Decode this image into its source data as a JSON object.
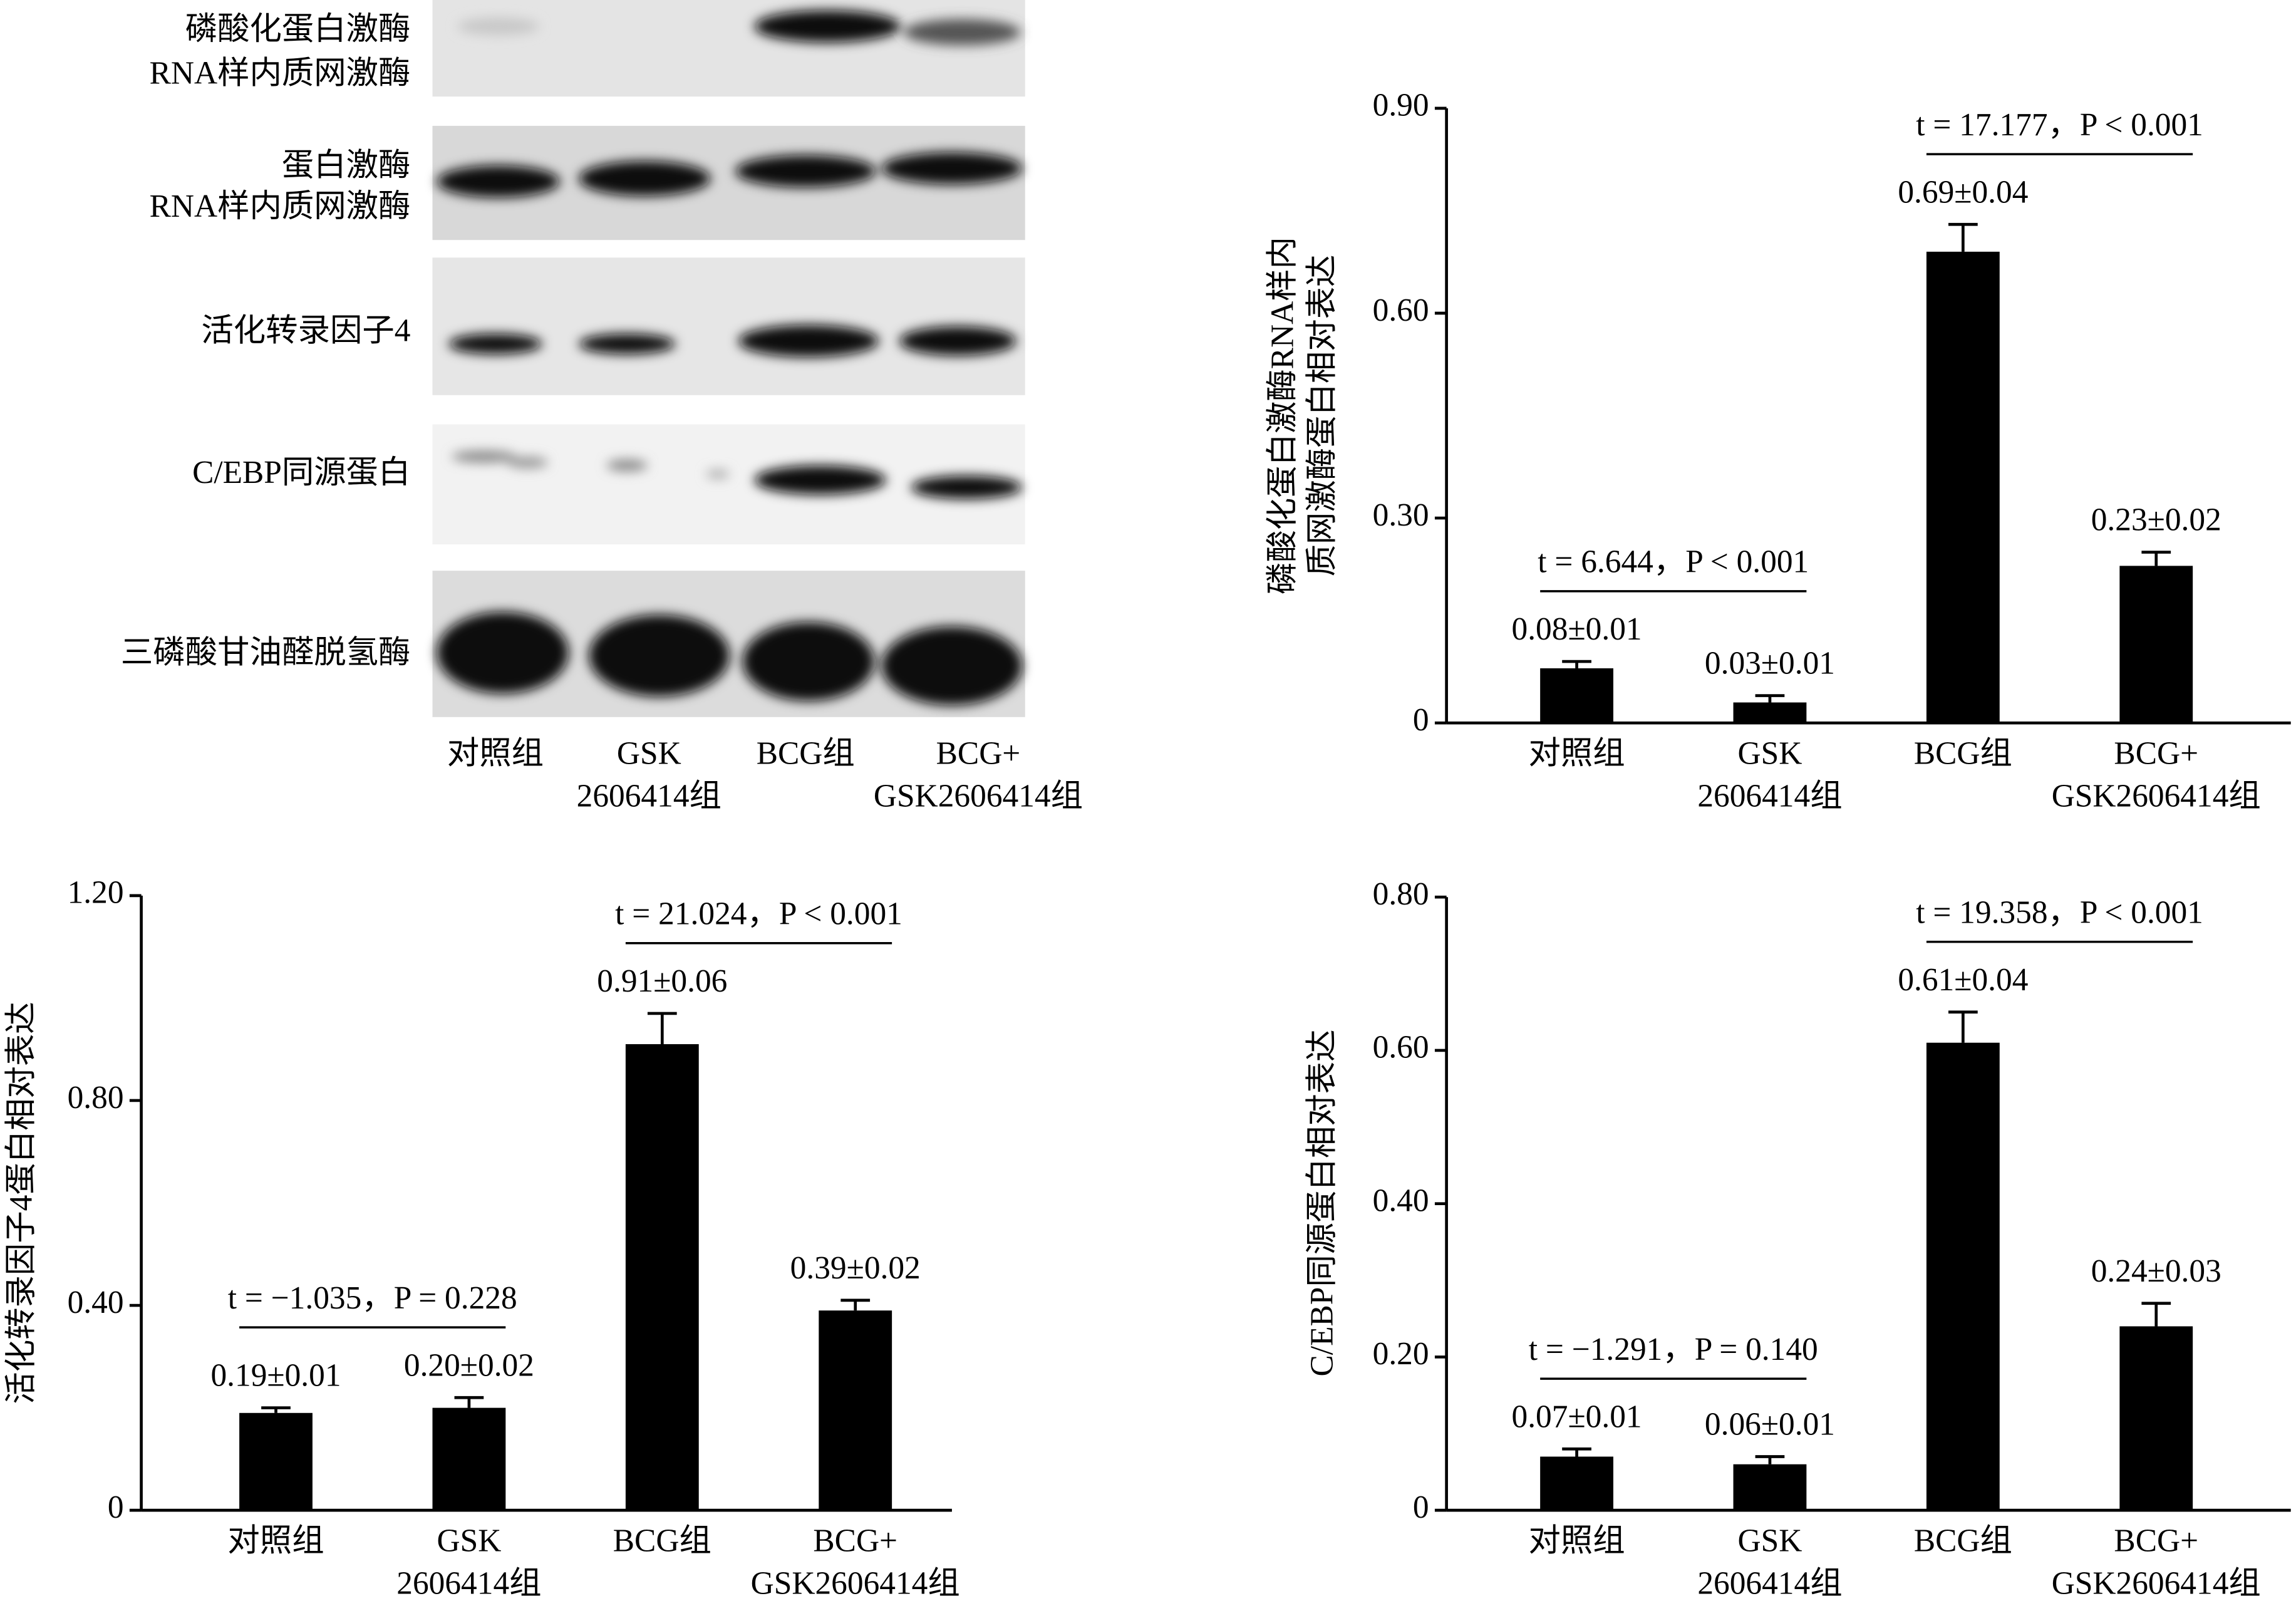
{
  "blot": {
    "rows": [
      [
        "磷酸化蛋白激酶",
        "RNA样内质网激酶"
      ],
      [
        "蛋白激酶",
        "RNA样内质网激酶"
      ],
      [
        "活化转录因子4"
      ],
      [
        "C/EBP同源蛋白"
      ],
      [
        "三磷酸甘油醛脱氢酶"
      ]
    ],
    "lanes": [
      [
        "对照组"
      ],
      [
        "GSK",
        "2606414组"
      ],
      [
        "BCG组"
      ],
      [
        "BCG+",
        "GSK2606414组"
      ]
    ]
  },
  "chart_data": [
    {
      "type": "bar",
      "ylabel": [
        "磷酸化蛋白激酶RNA样内",
        "质网激酶蛋白相对表达"
      ],
      "categories": [
        [
          "对照组"
        ],
        [
          "GSK",
          "2606414组"
        ],
        [
          "BCG组"
        ],
        [
          "BCG+",
          "GSK2606414组"
        ]
      ],
      "values": [
        0.08,
        0.03,
        0.69,
        0.23
      ],
      "errors": [
        0.01,
        0.01,
        0.04,
        0.02
      ],
      "value_labels": [
        "0.08±0.01",
        "0.03±0.01",
        "0.69±0.04",
        "0.23±0.02"
      ],
      "color": "#000000",
      "ylim": [
        0,
        0.9
      ],
      "yticks": [
        0,
        {
          "value": 0.3,
          "label": "0.30"
        },
        {
          "value": 0.6,
          "label": "0.60"
        },
        {
          "value": 0.9,
          "label": "0.90"
        }
      ],
      "annotations": [
        "t = 6.644，P < 0.001",
        "t = 17.177，P < 0.001"
      ]
    },
    {
      "type": "bar",
      "ylabel": [
        "活化转录因子4蛋白相对表达"
      ],
      "categories": [
        [
          "对照组"
        ],
        [
          "GSK",
          "2606414组"
        ],
        [
          "BCG组"
        ],
        [
          "BCG+",
          "GSK2606414组"
        ]
      ],
      "values": [
        0.19,
        0.2,
        0.91,
        0.39
      ],
      "errors": [
        0.01,
        0.02,
        0.06,
        0.02
      ],
      "value_labels": [
        "0.19±0.01",
        "0.20±0.02",
        "0.91±0.06",
        "0.39±0.02"
      ],
      "color": "#000000",
      "ylim": [
        0,
        1.2
      ],
      "yticks": [
        0,
        {
          "value": 0.4,
          "label": "0.40"
        },
        {
          "value": 0.8,
          "label": "0.80"
        },
        {
          "value": 1.2,
          "label": "1.20"
        }
      ],
      "annotations": [
        "t = −1.035，P = 0.228",
        "t = 21.024，P < 0.001"
      ]
    },
    {
      "type": "bar",
      "ylabel": [
        "C/EBP同源蛋白相对表达"
      ],
      "categories": [
        [
          "对照组"
        ],
        [
          "GSK",
          "2606414组"
        ],
        [
          "BCG组"
        ],
        [
          "BCG+",
          "GSK2606414组"
        ]
      ],
      "values": [
        0.07,
        0.06,
        0.61,
        0.24
      ],
      "errors": [
        0.01,
        0.01,
        0.04,
        0.03
      ],
      "value_labels": [
        "0.07±0.01",
        "0.06±0.01",
        "0.61±0.04",
        "0.24±0.03"
      ],
      "color": "#000000",
      "ylim": [
        0,
        0.8
      ],
      "yticks": [
        0,
        {
          "value": 0.2,
          "label": "0.20"
        },
        {
          "value": 0.4,
          "label": "0.40"
        },
        {
          "value": 0.6,
          "label": "0.60"
        },
        {
          "value": 0.8,
          "label": "0.80"
        }
      ],
      "annotations": [
        "t = −1.291，P = 0.140",
        "t = 19.358，P < 0.001"
      ]
    }
  ]
}
